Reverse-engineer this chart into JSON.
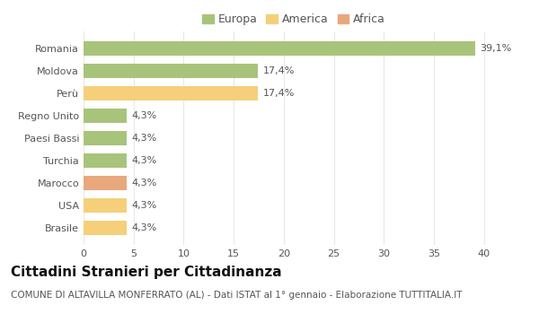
{
  "categories": [
    "Romania",
    "Moldova",
    "Perù",
    "Regno Unito",
    "Paesi Bassi",
    "Turchia",
    "Marocco",
    "USA",
    "Brasile"
  ],
  "values": [
    39.1,
    17.4,
    17.4,
    4.3,
    4.3,
    4.3,
    4.3,
    4.3,
    4.3
  ],
  "labels": [
    "39,1%",
    "17,4%",
    "17,4%",
    "4,3%",
    "4,3%",
    "4,3%",
    "4,3%",
    "4,3%",
    "4,3%"
  ],
  "colors": [
    "#a8c47a",
    "#a8c47a",
    "#f5cf7a",
    "#a8c47a",
    "#a8c47a",
    "#a8c47a",
    "#e8a87c",
    "#f5cf7a",
    "#f5cf7a"
  ],
  "legend": [
    {
      "label": "Europa",
      "color": "#a8c47a"
    },
    {
      "label": "America",
      "color": "#f5cf7a"
    },
    {
      "label": "Africa",
      "color": "#e8a87c"
    }
  ],
  "xlim": [
    0,
    42
  ],
  "xticks": [
    0,
    5,
    10,
    15,
    20,
    25,
    30,
    35,
    40
  ],
  "title": "Cittadini Stranieri per Cittadinanza",
  "subtitle": "COMUNE DI ALTAVILLA MONFERRATO (AL) - Dati ISTAT al 1° gennaio - Elaborazione TUTTITALIA.IT",
  "background_color": "#ffffff",
  "grid_color": "#e8e8e8",
  "bar_height": 0.65,
  "label_fontsize": 8,
  "title_fontsize": 11,
  "subtitle_fontsize": 7.5,
  "ytick_fontsize": 8,
  "xtick_fontsize": 8,
  "legend_fontsize": 9,
  "text_color": "#555555",
  "title_color": "#111111"
}
